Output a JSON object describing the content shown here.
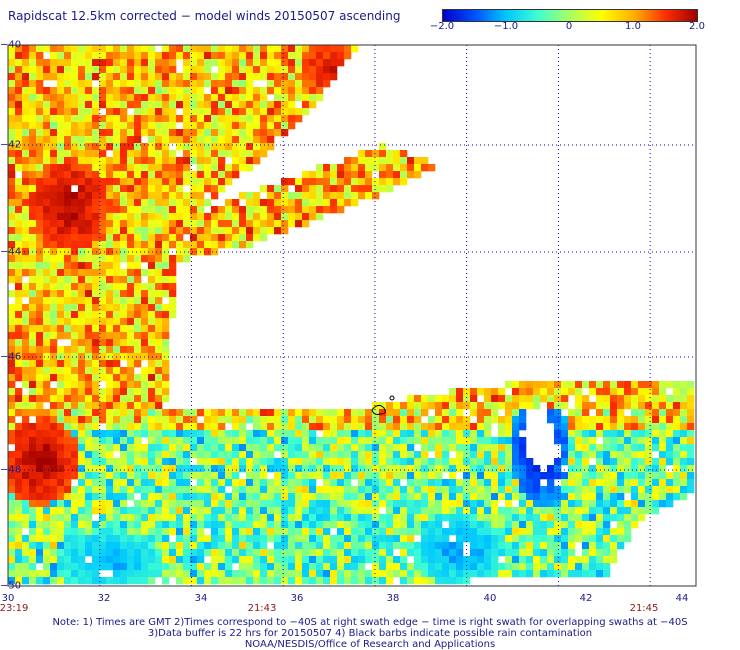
{
  "title": "Rapidscat 12.5km corrected − model winds 20150507 ascending",
  "colorbar": {
    "ticks": [
      "−2.0",
      "−1.0",
      "0",
      "1.0",
      "2.0"
    ],
    "range": [
      -2.0,
      2.0
    ]
  },
  "x_axis": {
    "labels": [
      "30",
      "32",
      "34",
      "36",
      "38",
      "40",
      "42",
      "44"
    ],
    "range": [
      30,
      45
    ]
  },
  "y_axis": {
    "labels": [
      "−40",
      "−42",
      "−44",
      "−46",
      "−48",
      "−50"
    ],
    "range": [
      -50,
      -40
    ]
  },
  "swath_times": [
    "23:19",
    "21:43",
    "21:45"
  ],
  "notes": {
    "line1": "Note: 1) Times are GMT 2)Times correspond to −40S at right swath edge − time is right swath for overlapping swaths at −40S",
    "line2": "3)Data buffer is 22 hrs for 20150507 4) Black barbs indicate possible rain contamination",
    "line3": "NOAA/NESDIS/Office of Research and Applications"
  },
  "colors": {
    "text": "#1a1a8a",
    "time_text": "#8b1a1a",
    "grid": "#0000aa"
  }
}
